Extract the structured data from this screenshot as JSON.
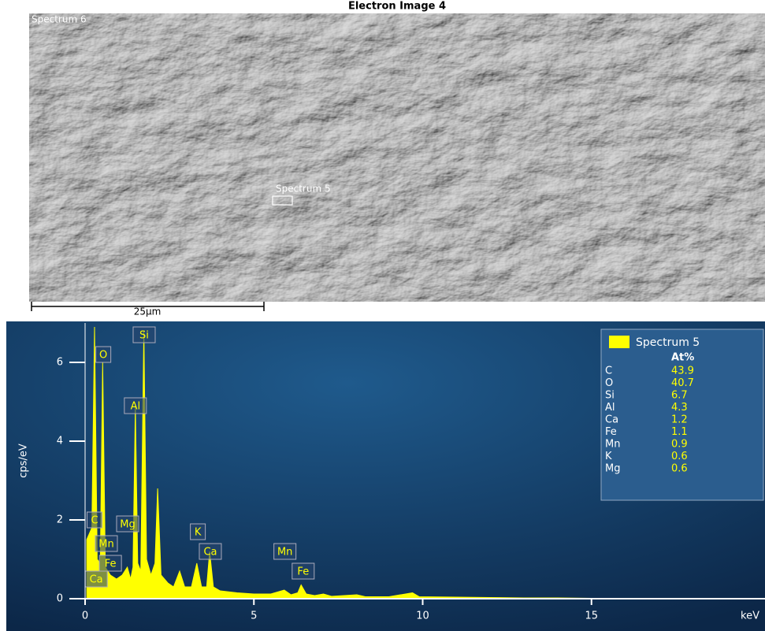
{
  "electron_image": {
    "title": "Electron Image 4",
    "spectrum_labels": [
      "Spectrum 6",
      "Spectrum 5"
    ],
    "scale_bar": "25μm"
  },
  "chart_data": {
    "type": "area",
    "x_label": "keV",
    "y_label": "cps/eV",
    "x": [
      0.05,
      0.2,
      0.28,
      0.36,
      0.45,
      0.52,
      0.6,
      0.75,
      0.93,
      1.1,
      1.25,
      1.35,
      1.42,
      1.49,
      1.56,
      1.65,
      1.74,
      1.82,
      1.95,
      2.07,
      2.15,
      2.25,
      2.45,
      2.62,
      2.8,
      2.95,
      3.15,
      3.31,
      3.45,
      3.6,
      3.69,
      3.8,
      4.0,
      4.5,
      5.0,
      5.5,
      5.9,
      6.1,
      6.3,
      6.4,
      6.55,
      6.8,
      7.06,
      7.3,
      8.05,
      8.3,
      9.0,
      9.7,
      9.9,
      11.0,
      12.0,
      13.0,
      14.0,
      15.0,
      16.0
    ],
    "series": [
      {
        "name": "Spectrum 5",
        "color": "#ffff00",
        "values": [
          1.5,
          1.8,
          6.9,
          1.0,
          0.9,
          6.0,
          0.8,
          0.6,
          0.5,
          0.6,
          0.8,
          0.5,
          0.8,
          4.9,
          0.9,
          0.7,
          6.8,
          1.0,
          0.6,
          0.9,
          2.8,
          0.6,
          0.4,
          0.3,
          0.7,
          0.3,
          0.3,
          0.9,
          0.3,
          0.3,
          1.2,
          0.3,
          0.2,
          0.15,
          0.12,
          0.12,
          0.22,
          0.1,
          0.15,
          0.35,
          0.12,
          0.08,
          0.12,
          0.06,
          0.1,
          0.05,
          0.05,
          0.15,
          0.05,
          0.04,
          0.03,
          0.02,
          0.02,
          0.01,
          0.01
        ]
      }
    ],
    "xlim": [
      0,
      20
    ],
    "xticks": [
      0,
      5,
      10,
      15
    ],
    "ylim": [
      0,
      7
    ],
    "yticks": [
      0,
      2,
      4,
      6
    ],
    "peak_labels": [
      {
        "text": "Si",
        "x": 1.75,
        "y": 6.7
      },
      {
        "text": "O",
        "x": 0.54,
        "y": 6.2
      },
      {
        "text": "Al",
        "x": 1.49,
        "y": 4.9
      },
      {
        "text": "C",
        "x": 0.28,
        "y": 2.0
      },
      {
        "text": "Mg",
        "x": 1.26,
        "y": 1.9
      },
      {
        "text": "Mn",
        "x": 0.63,
        "y": 1.4
      },
      {
        "text": "Fe",
        "x": 0.75,
        "y": 0.9
      },
      {
        "text": "Ca",
        "x": 0.33,
        "y": 0.5
      },
      {
        "text": "K",
        "x": 3.34,
        "y": 1.7
      },
      {
        "text": "Ca",
        "x": 3.71,
        "y": 1.2
      },
      {
        "text": "Mn",
        "x": 5.92,
        "y": 1.2
      },
      {
        "text": "Fe",
        "x": 6.46,
        "y": 0.7
      }
    ],
    "legend": {
      "header": "At%",
      "rows": [
        [
          "C",
          43.9
        ],
        [
          "O",
          40.7
        ],
        [
          "Si",
          6.7
        ],
        [
          "Al",
          4.3
        ],
        [
          "Ca",
          1.2
        ],
        [
          "Fe",
          1.1
        ],
        [
          "Mn",
          0.9
        ],
        [
          "K",
          0.6
        ],
        [
          "Mg",
          0.6
        ]
      ]
    }
  }
}
